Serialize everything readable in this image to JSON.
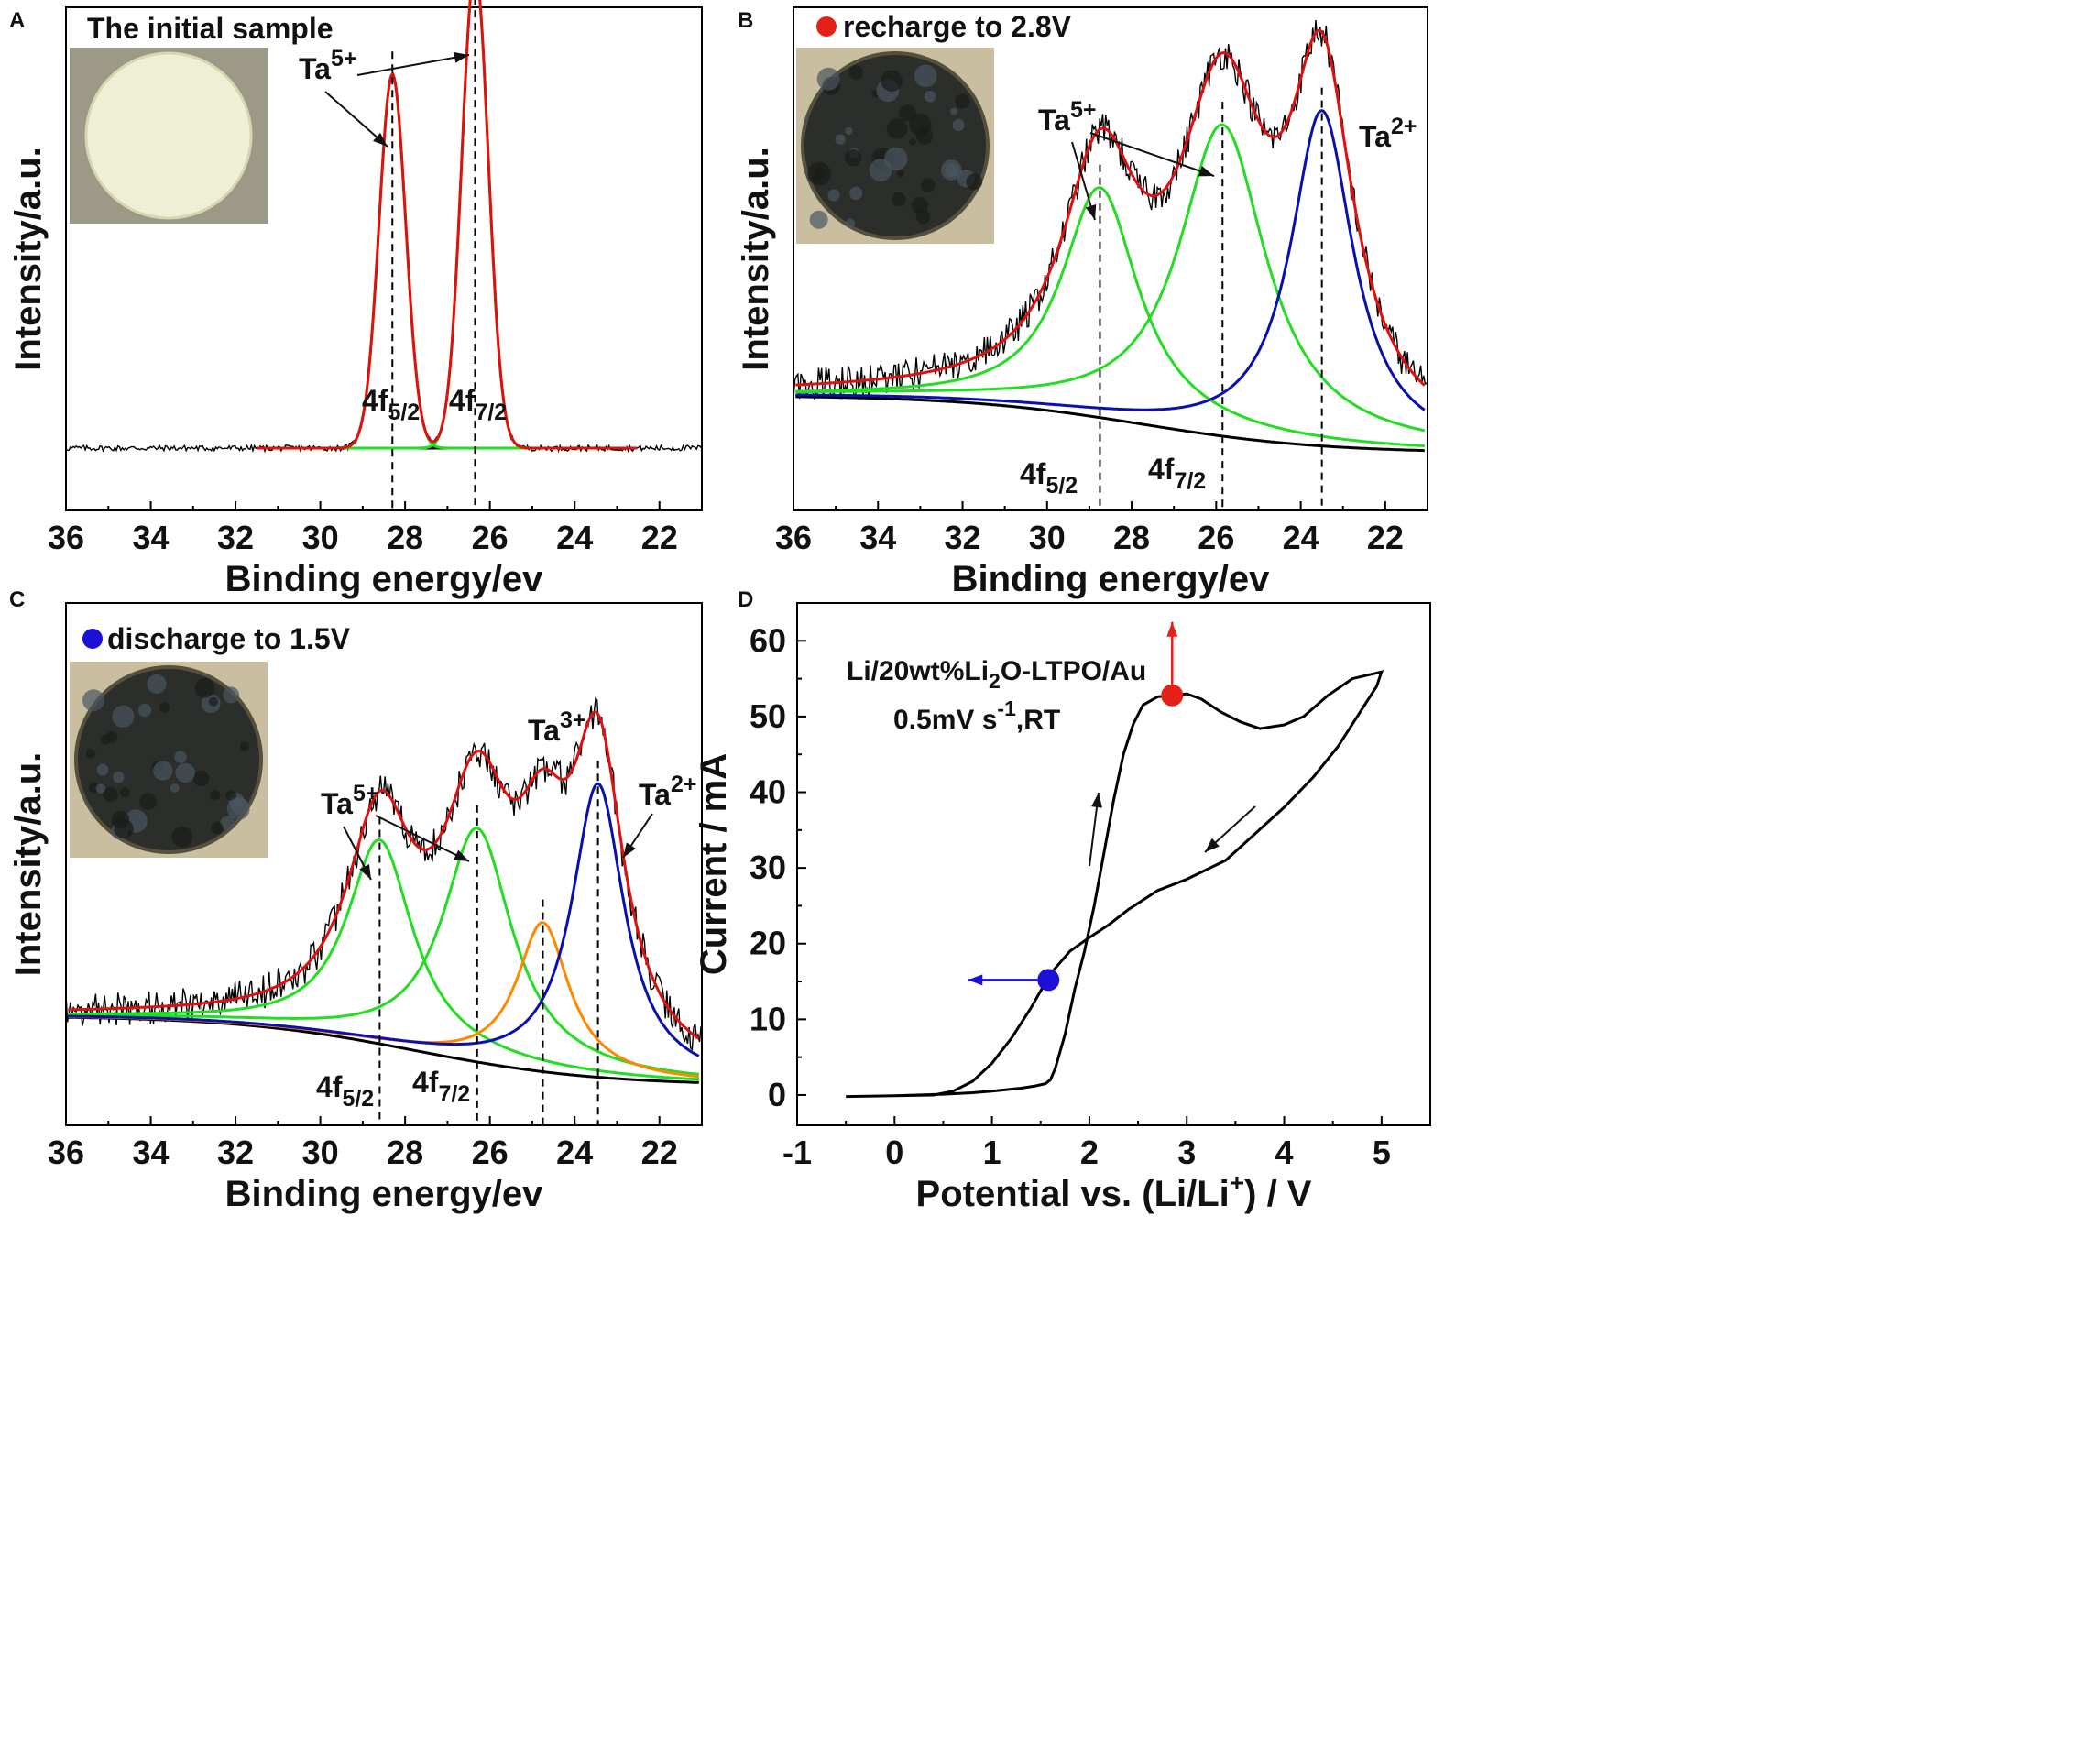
{
  "figure": {
    "panel_labels": [
      "A",
      "B",
      "C",
      "D"
    ]
  },
  "colors": {
    "raw": "#000000",
    "envelope": "#e01010",
    "ta5": "#22dd22",
    "ta3": "#ff8800",
    "ta2": "#0a10b0",
    "baseline": "#000000",
    "inset_light": "#eef0d6",
    "inset_dark": "#2b2e2a",
    "marker_red": "#e52117",
    "marker_blue": "#1a10d8"
  },
  "chart_data": [
    {
      "panel": "A",
      "type": "line",
      "title": "The initial sample",
      "xlabel": "Binding energy/ev",
      "ylabel": "Intensity/a.u.",
      "xlim": [
        36,
        21
      ],
      "ylim": [
        0,
        1.05
      ],
      "xticks": [
        36,
        34,
        32,
        30,
        28,
        26,
        24,
        22
      ],
      "tick_labels": [
        "36",
        "34",
        "32",
        "30",
        "28",
        "26",
        "24",
        "22"
      ],
      "baseline": 0.13,
      "fit_range": [
        31.5,
        22.5
      ],
      "peaks": [
        {
          "name": "4f5/2",
          "species": "Ta5+",
          "center": 28.3,
          "height": 0.78,
          "width": 0.42
        },
        {
          "name": "4f7/2",
          "species": "Ta5+",
          "center": 26.35,
          "height": 1.0,
          "width": 0.42
        }
      ],
      "annotations": {
        "ion_top": "Ta",
        "ion_top_charge": "5+",
        "sub_a_main": "4f",
        "sub_a_sub": "5/2",
        "sub_b_main": "4f",
        "sub_b_sub": "7/2"
      },
      "inset": "light"
    },
    {
      "panel": "B",
      "type": "line",
      "title": "recharge to 2.8V",
      "xlabel": "Binding energy/ev",
      "ylabel": "Intensity/a.u.",
      "xlim": [
        36,
        21
      ],
      "ylim": [
        0,
        1.05
      ],
      "xticks": [
        36,
        34,
        32,
        30,
        28,
        26,
        24,
        22
      ],
      "tick_labels": [
        "36",
        "34",
        "32",
        "30",
        "28",
        "26",
        24,
        "22"
      ],
      "baseline_left": 0.24,
      "baseline_right": 0.12,
      "peaks": [
        {
          "name": "4f5/2",
          "species": "Ta5+",
          "center": 28.75,
          "height": 0.48,
          "width": 1.1
        },
        {
          "name": "4f7/2",
          "species": "Ta5+",
          "center": 25.85,
          "height": 0.65,
          "width": 1.25
        },
        {
          "name": "",
          "species": "Ta2+",
          "center": 23.5,
          "height": 0.7,
          "width": 0.9
        }
      ],
      "annotations": {
        "ion_a": "Ta",
        "ion_a_charge": "5+",
        "ion_b": "Ta",
        "ion_b_charge": "2+",
        "sub_a_main": "4f",
        "sub_a_sub": "5/2",
        "sub_b_main": "4f",
        "sub_b_sub": "7/2"
      },
      "inset": "dark"
    },
    {
      "panel": "C",
      "type": "line",
      "title": "discharge to 1.5V",
      "xlabel": "Binding energy/ev",
      "ylabel": "Intensity/a.u.",
      "xlim": [
        36,
        21
      ],
      "ylim": [
        0,
        1.05
      ],
      "xticks": [
        36,
        34,
        32,
        30,
        28,
        26,
        24,
        22
      ],
      "tick_labels": [
        "36",
        "34",
        "32",
        "30",
        "28",
        "26",
        "24",
        "22"
      ],
      "baseline_left": 0.22,
      "baseline_right": 0.08,
      "peaks": [
        {
          "name": "4f5/2",
          "species": "Ta5+",
          "center": 28.6,
          "height": 0.41,
          "width": 0.95
        },
        {
          "name": "4f7/2",
          "species": "Ta5+",
          "center": 26.3,
          "height": 0.47,
          "width": 1.0
        },
        {
          "name": "",
          "species": "Ta3+",
          "center": 24.75,
          "height": 0.3,
          "width": 0.75
        },
        {
          "name": "",
          "species": "Ta2+",
          "center": 23.45,
          "height": 0.59,
          "width": 0.75
        }
      ],
      "annotations": {
        "ion_a": "Ta",
        "ion_a_charge": "5+",
        "ion_b": "Ta",
        "ion_b_charge": "3+",
        "ion_c": "Ta",
        "ion_c_charge": "2+",
        "sub_a_main": "4f",
        "sub_a_sub": "5/2",
        "sub_b_main": "4f",
        "sub_b_sub": "7/2"
      },
      "inset": "dark"
    },
    {
      "panel": "D",
      "type": "line",
      "title": "",
      "xlabel_main": "Potential vs. (Li/Li",
      "xlabel_sup": "+",
      "xlabel_tail": ") / V",
      "ylabel": "Current / mA",
      "xlim": [
        -1,
        5.5
      ],
      "ylim": [
        -4,
        65
      ],
      "xticks": [
        -1,
        0,
        1,
        2,
        3,
        4,
        5
      ],
      "xtick_labels": [
        "-1",
        "0",
        "1",
        "2",
        "3",
        "4",
        "5"
      ],
      "yticks": [
        0,
        10,
        20,
        30,
        40,
        50,
        60
      ],
      "ytick_labels": [
        "0",
        "10",
        "20",
        "30",
        "40",
        "50",
        "60"
      ],
      "legend_line1_a": "Li/20wt%Li",
      "legend_line1_sub": "2",
      "legend_line1_b": "O-LTPO/Au",
      "legend_line2_a": "0.5mV s",
      "legend_line2_sup": "-1",
      "legend_line2_b": ",RT",
      "cv_curve": [
        [
          -0.5,
          -0.2
        ],
        [
          0.0,
          -0.1
        ],
        [
          0.5,
          0.1
        ],
        [
          0.8,
          0.3
        ],
        [
          1.0,
          0.5
        ],
        [
          1.3,
          0.9
        ],
        [
          1.45,
          1.2
        ],
        [
          1.55,
          1.5
        ],
        [
          1.6,
          2.0
        ],
        [
          1.65,
          3.5
        ],
        [
          1.75,
          8.0
        ],
        [
          1.85,
          14.0
        ],
        [
          1.95,
          19.0
        ],
        [
          2.05,
          25.0
        ],
        [
          2.15,
          32.0
        ],
        [
          2.25,
          39.0
        ],
        [
          2.35,
          45.0
        ],
        [
          2.45,
          49.0
        ],
        [
          2.55,
          51.5
        ],
        [
          2.7,
          52.6
        ],
        [
          2.85,
          52.8
        ],
        [
          3.0,
          53.0
        ],
        [
          3.15,
          52.3
        ],
        [
          3.35,
          50.6
        ],
        [
          3.55,
          49.3
        ],
        [
          3.75,
          48.4
        ],
        [
          4.0,
          48.9
        ],
        [
          4.2,
          50.0
        ],
        [
          4.45,
          52.8
        ],
        [
          4.7,
          55.0
        ],
        [
          5.0,
          55.9
        ],
        [
          4.95,
          54.0
        ],
        [
          4.75,
          50.0
        ],
        [
          4.55,
          46.0
        ],
        [
          4.3,
          42.0
        ],
        [
          4.0,
          38.0
        ],
        [
          3.7,
          34.5
        ],
        [
          3.4,
          31.0
        ],
        [
          3.0,
          28.5
        ],
        [
          2.7,
          27.0
        ],
        [
          2.4,
          24.5
        ],
        [
          2.2,
          22.5
        ],
        [
          2.0,
          20.8
        ],
        [
          1.8,
          19.0
        ],
        [
          1.6,
          16.0
        ],
        [
          1.4,
          11.5
        ],
        [
          1.2,
          7.5
        ],
        [
          1.0,
          4.2
        ],
        [
          0.8,
          1.8
        ],
        [
          0.6,
          0.5
        ],
        [
          0.4,
          0.0
        ],
        [
          0.2,
          -0.05
        ],
        [
          0.0,
          -0.1
        ],
        [
          -0.5,
          -0.2
        ]
      ],
      "markers": [
        {
          "label": "recharge to 2.8V",
          "x": 2.85,
          "y": 52.8,
          "color": "red",
          "arrow": "up"
        },
        {
          "label": "discharge to 1.5V",
          "x": 1.58,
          "y": 15.2,
          "color": "blue",
          "arrow": "left"
        }
      ]
    }
  ]
}
